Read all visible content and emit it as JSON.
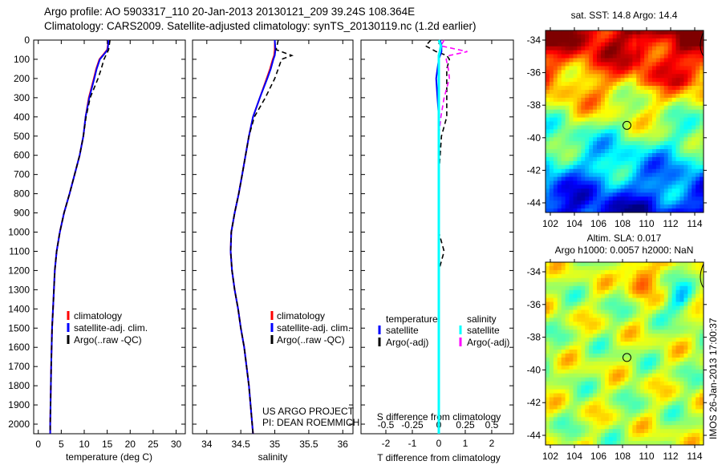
{
  "title": {
    "line1": "Argo profile: AO 5903317_110 20-Jan-2013 20130121_209 39.24S 108.364E",
    "line2": "Climatology: CARS2009. Satellite-adjusted climatology: synTS_20130119.nc (1.2d earlier)"
  },
  "credit": {
    "line1": "US ARGO PROJECT",
    "line2": "PI: DEAN ROEMMICH"
  },
  "stamp": "IMOS 26-Jan-2013 17:00:37",
  "colors": {
    "climatology": "#ff0000",
    "satellite": "#0000ff",
    "argo": "#000000",
    "sal_satellite": "#00ffff",
    "sal_argo": "#ff00ff"
  },
  "chart_data": [
    {
      "type": "line",
      "xlabel": "temperature (deg C)",
      "xlim": [
        -1,
        32
      ],
      "ylim": [
        2050,
        0
      ],
      "yticks": [
        0,
        100,
        200,
        300,
        400,
        500,
        600,
        700,
        800,
        900,
        1000,
        1100,
        1200,
        1300,
        1400,
        1500,
        1600,
        1700,
        1800,
        1900,
        2000
      ],
      "xticks": [
        0,
        5,
        10,
        15,
        20,
        25,
        30
      ],
      "legend": [
        "climatology",
        "satellite-adj. clim.",
        "Argo(..raw -QC)"
      ],
      "depth": [
        0,
        50,
        80,
        100,
        150,
        200,
        300,
        400,
        500,
        600,
        700,
        800,
        900,
        1000,
        1100,
        1200,
        1300,
        1400,
        1500,
        1700,
        2000,
        2050
      ],
      "series": [
        {
          "name": "climatology",
          "values": [
            15.3,
            15.0,
            14.0,
            13.3,
            12.6,
            12.1,
            11.0,
            10.3,
            9.8,
            9.0,
            7.9,
            6.8,
            5.6,
            4.7,
            4.0,
            3.6,
            3.4,
            3.2,
            3.0,
            2.8,
            2.6,
            2.6
          ]
        },
        {
          "name": "satellite-adj. clim.",
          "values": [
            15.3,
            15.1,
            14.1,
            13.4,
            12.7,
            12.2,
            11.1,
            10.3,
            9.8,
            9.0,
            7.9,
            6.8,
            5.6,
            4.7,
            4.0,
            3.6,
            3.4,
            3.2,
            3.0,
            2.8,
            2.6,
            2.6
          ]
        },
        {
          "name": "Argo(..raw -QC)",
          "values": [
            15.6,
            15.3,
            14.7,
            14.3,
            13.7,
            13.0,
            11.3,
            10.4,
            9.8,
            9.0,
            7.9,
            6.8,
            5.6,
            4.7,
            4.0,
            3.6,
            3.4,
            3.2,
            3.0,
            2.8,
            2.6,
            2.6
          ]
        }
      ]
    },
    {
      "type": "line",
      "xlabel": "salinity",
      "xlim": [
        33.79,
        36.15
      ],
      "ylim": [
        2050,
        0
      ],
      "xticks": [
        34,
        34.5,
        35,
        35.5,
        36
      ],
      "legend": [
        "climatology",
        "satellite-adj. clim.",
        "Argo(..raw -QC)"
      ],
      "depth": [
        0,
        50,
        80,
        100,
        150,
        200,
        300,
        400,
        500,
        600,
        700,
        800,
        900,
        1000,
        1100,
        1200,
        1300,
        1400,
        1500,
        1600,
        1800,
        2050
      ],
      "series": [
        {
          "name": "climatology",
          "values": [
            35.0,
            35.0,
            34.99,
            34.97,
            34.93,
            34.88,
            34.78,
            34.68,
            34.62,
            34.57,
            34.52,
            34.47,
            34.41,
            34.36,
            34.35,
            34.37,
            34.41,
            34.46,
            34.5,
            34.55,
            34.62,
            34.68
          ]
        },
        {
          "name": "satellite-adj. clim.",
          "values": [
            35.0,
            35.01,
            35.0,
            34.98,
            34.94,
            34.89,
            34.78,
            34.68,
            34.62,
            34.57,
            34.52,
            34.47,
            34.41,
            34.36,
            34.35,
            34.37,
            34.41,
            34.46,
            34.5,
            34.55,
            34.62,
            34.68
          ]
        },
        {
          "name": "Argo(..raw -QC)",
          "values": [
            35.05,
            35.02,
            35.25,
            35.1,
            35.05,
            35.0,
            34.86,
            34.7,
            34.62,
            34.57,
            34.52,
            34.47,
            34.41,
            34.36,
            34.35,
            34.37,
            34.41,
            34.46,
            34.5,
            34.55,
            34.62,
            34.68
          ]
        }
      ]
    },
    {
      "type": "line",
      "xlabel": "T difference from climatology",
      "xlabel2": "S difference from climatology",
      "xlim": [
        -2.94,
        2.82
      ],
      "xticks": [
        -2,
        -1,
        0,
        1,
        2
      ],
      "xticks2": [
        -0.5,
        -0.25,
        0,
        0.25,
        0.5
      ],
      "legend_headers": [
        "temperature",
        "salinity"
      ],
      "legend": [
        "satellite",
        "Argo(-adj)",
        "satellite",
        "Argo(-adj)"
      ],
      "depth": [
        0,
        30,
        60,
        80,
        100,
        150,
        200,
        300,
        400,
        500,
        700,
        1000,
        1100,
        1200,
        1500,
        2050
      ],
      "series": [
        {
          "name": "T satellite",
          "values": [
            0.05,
            0.1,
            0.1,
            0.05,
            0,
            -0.05,
            -0.1,
            -0.05,
            0,
            0,
            0,
            0,
            0,
            0,
            0,
            0
          ]
        },
        {
          "name": "T Argo(-adj)",
          "values": [
            -0.3,
            -0.5,
            -0.1,
            0.3,
            0.4,
            0.3,
            0.3,
            0.3,
            0.3,
            0.1,
            0,
            0,
            0.2,
            0,
            0,
            0
          ]
        },
        {
          "name": "S satellite",
          "values": [
            0,
            0.02,
            0.01,
            0,
            0,
            0,
            0,
            0,
            0,
            0,
            0,
            0,
            0,
            0,
            0,
            0
          ]
        },
        {
          "name": "S Argo(-adj)",
          "values": [
            0.05,
            0.02,
            0.27,
            0.1,
            0.07,
            0.09,
            0.1,
            0.05,
            0.02,
            0.0,
            0.0,
            0.0,
            0.0,
            0.0,
            0.0,
            0.0
          ]
        }
      ]
    },
    {
      "type": "heatmap",
      "title": "sat. SST: 14.8 Argo: 14.4",
      "xticks": [
        102,
        104,
        106,
        108,
        110,
        112,
        114
      ],
      "yticks": [
        -34,
        -36,
        -38,
        -40,
        -42,
        -44
      ],
      "argo_lon": 108.364,
      "argo_lat": -39.24
    },
    {
      "type": "heatmap",
      "title": "Altim. SLA: 0.017",
      "subtitle": "Argo h1000: 0.0057 h2000: NaN",
      "xticks": [
        102,
        104,
        106,
        108,
        110,
        112,
        114
      ],
      "yticks": [
        -34,
        -36,
        -38,
        -40,
        -42,
        -44
      ],
      "argo_lon": 108.364,
      "argo_lat": -39.24
    }
  ]
}
